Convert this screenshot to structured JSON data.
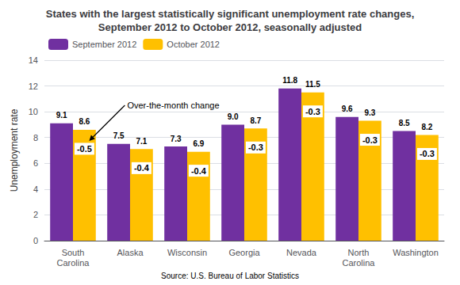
{
  "chart_data": {
    "type": "bar",
    "title": "States with the largest statistically significant unemployment rate changes,\nSeptember 2012 to October 2012, seasonally adjusted",
    "categories": [
      "South\nCarolina",
      "Alaska",
      "Wisconsin",
      "Georgia",
      "Nevada",
      "North\nCarolina",
      "Washington"
    ],
    "series": [
      {
        "name": "September 2012",
        "color": "#7030A0",
        "values": [
          9.1,
          7.5,
          7.3,
          9.0,
          11.8,
          9.6,
          8.5
        ],
        "value_labels": [
          "9.1",
          "7.5",
          "7.3",
          "9.0",
          "11.8",
          "9.6",
          "8.5"
        ]
      },
      {
        "name": "October 2012",
        "color": "#FFC000",
        "values": [
          8.6,
          7.1,
          6.9,
          8.7,
          11.5,
          9.3,
          8.2
        ],
        "value_labels": [
          "8.6",
          "7.1",
          "6.9",
          "8.7",
          "11.5",
          "9.3",
          "8.2"
        ],
        "changes": [
          "-0.5",
          "-0.4",
          "-0.4",
          "-0.3",
          "-0.3",
          "-0.3",
          "-0.3"
        ]
      }
    ],
    "ylabel": "Unemployment rate",
    "ylim": [
      0,
      14
    ],
    "yticks": [
      0,
      2,
      4,
      6,
      8,
      10,
      12,
      14
    ],
    "grid": true,
    "legend": "upper left",
    "data_labels": true,
    "annotation": "Over-the-month change",
    "source": "Source: U.S. Bureau of Labor Statistics"
  }
}
